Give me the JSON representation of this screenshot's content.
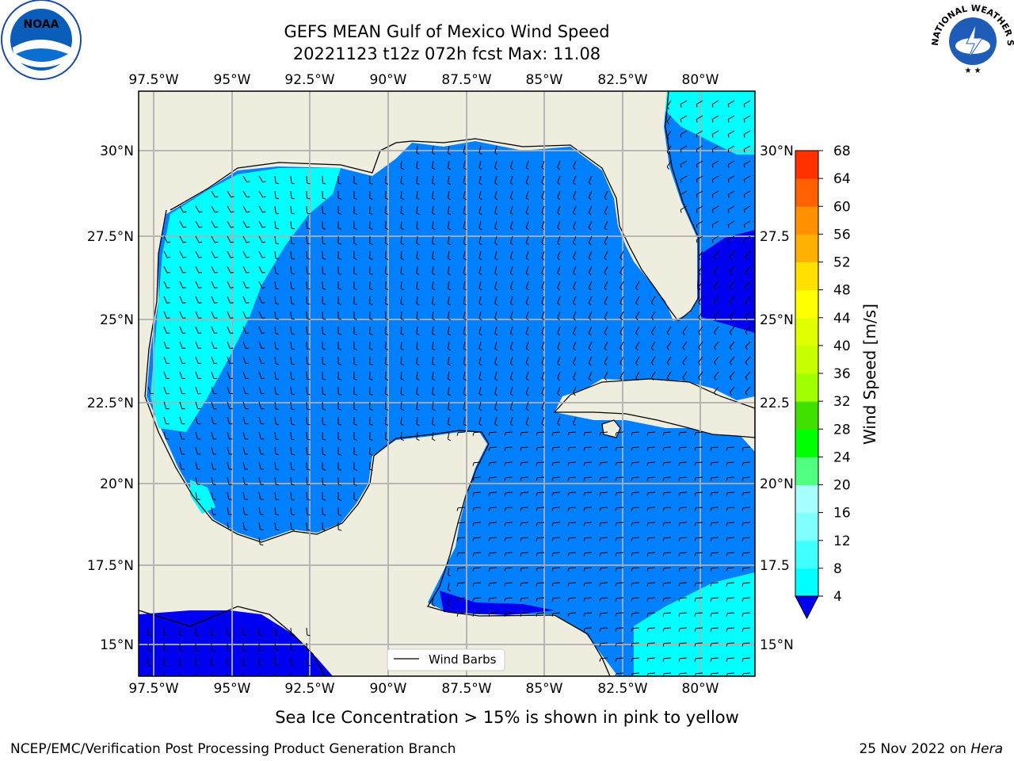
{
  "title": {
    "line1": "GEFS MEAN Gulf of Mexico Wind Speed",
    "line2": "20221123 t12z 072h fcst   Max: 11.08"
  },
  "axes": {
    "lon_labels": [
      "97.5°W",
      "95°W",
      "92.5°W",
      "90°W",
      "87.5°W",
      "85°W",
      "82.5°W",
      "80°W"
    ],
    "lat_labels_left": [
      "30°N",
      "27.5°N",
      "25°N",
      "22.5°N",
      "20°N",
      "17.5°N",
      "15°N"
    ],
    "lat_labels_right": [
      "30°N",
      "27.5",
      "25°N",
      "22.5",
      "20°N",
      "17.5",
      "15°N"
    ]
  },
  "legend": {
    "label": "Wind Barbs"
  },
  "colorbar": {
    "label": "Wind Speed [m/s]",
    "ticks": [
      "4",
      "8",
      "12",
      "16",
      "20",
      "24",
      "28",
      "32",
      "36",
      "40",
      "44",
      "48",
      "52",
      "56",
      "60",
      "64",
      "68"
    ],
    "colors": [
      "#0080ff",
      "#00ffff",
      "#40ffff",
      "#80ffff",
      "#a8ffff",
      "#50ff80",
      "#00ff00",
      "#40e000",
      "#a0ff00",
      "#c8ff00",
      "#e0ff00",
      "#ffff00",
      "#ffe000",
      "#ffb000",
      "#ff9000",
      "#ff6000",
      "#ff3000",
      "#ff0000"
    ]
  },
  "palette": {
    "land": "#efedde",
    "blue": "#0080ff",
    "dark_blue": "#0000f0",
    "cyan": "#00ffff"
  },
  "note": "Sea Ice Concentration > 15% is shown in pink to yellow",
  "footer": {
    "left": "NCEP/EMC/Verification Post Processing Product Generation Branch",
    "right_date": "25 Nov 2022 on ",
    "right_host": "Hera"
  },
  "logos": {
    "noaa": "NOAA",
    "nws_text": "NATIONAL WEATHER SERVICE"
  }
}
